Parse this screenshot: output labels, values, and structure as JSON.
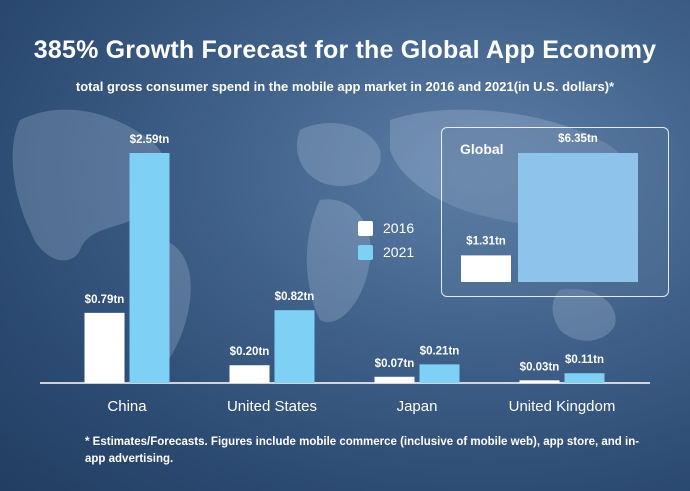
{
  "colors": {
    "bar_2016": "#ffffff",
    "bar_2021": "#7fd0f5",
    "global_2021": "#8ec4ec",
    "text": "#ffffff"
  },
  "legend": {
    "items": [
      {
        "label": "2016",
        "color": "#ffffff"
      },
      {
        "label": "2021",
        "color": "#7fd0f5"
      }
    ]
  },
  "footnote": "* Estimates/Forecasts. Figures include mobile commerce (inclusive of mobile web), app store, and in-app advertising.",
  "chart_data": [
    {
      "type": "bar",
      "title": "385% Growth Forecast for the Global App Economy",
      "subtitle": "total gross consumer spend in the mobile app market in 2016 and 2021(in U.S. dollars)*",
      "categories": [
        "China",
        "United States",
        "Japan",
        "United Kingdom"
      ],
      "series": [
        {
          "name": "2016",
          "values": [
            0.79,
            0.2,
            0.07,
            0.03
          ],
          "labels": [
            "$0.79tn",
            "$0.20tn",
            "$0.07tn",
            "$0.03tn"
          ]
        },
        {
          "name": "2021",
          "values": [
            2.59,
            0.82,
            0.21,
            0.11
          ],
          "labels": [
            "$2.59tn",
            "$0.82tn",
            "$0.21tn",
            "$0.11tn"
          ]
        }
      ],
      "ylim": [
        0,
        2.59
      ],
      "grid": false,
      "legend_position": "center-right"
    },
    {
      "type": "bar",
      "title": "Global",
      "categories": [
        "Global"
      ],
      "series": [
        {
          "name": "2016",
          "values": [
            1.31
          ],
          "labels": [
            "$1.31tn"
          ]
        },
        {
          "name": "2021",
          "values": [
            6.35
          ],
          "labels": [
            "$6.35tn"
          ]
        }
      ],
      "ylim": [
        0,
        6.35
      ],
      "grid": false
    }
  ]
}
